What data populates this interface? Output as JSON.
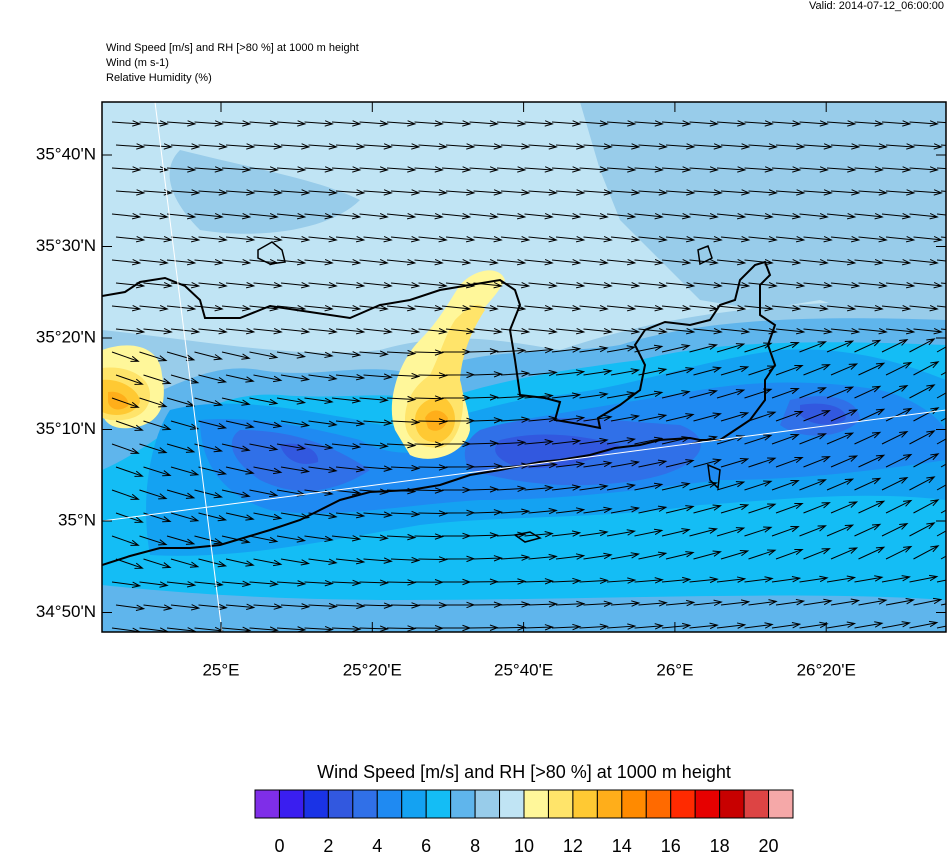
{
  "header": {
    "valid": "Valid: 2014-07-12_06:00:00",
    "lines": [
      "Wind Speed [m/s] and RH [>80 %] at 1000 m height",
      "Wind   (m s-1)",
      "Relative Humidity   (%)"
    ]
  },
  "map": {
    "lat_labels": [
      "35°40'N",
      "35°30'N",
      "35°20'N",
      "35°10'N",
      "35°N",
      "34°50'N"
    ],
    "lon_labels": [
      "25°E",
      "25°20'E",
      "25°40'E",
      "26°E",
      "26°20'E"
    ]
  },
  "colorbar": {
    "title": "Wind Speed [m/s] and RH [>80 %] at 1000 m height",
    "labels": [
      0,
      2,
      4,
      6,
      8,
      10,
      12,
      14,
      16,
      18,
      20
    ],
    "colors": [
      "#7f2ee8",
      "#3a1ef0",
      "#1a33e6",
      "#3258df",
      "#3070e8",
      "#1f8af2",
      "#14a2f2",
      "#14bdf5",
      "#5fb5ec",
      "#98ccea",
      "#c0e4f4",
      "#fff79a",
      "#ffe46a",
      "#ffc933",
      "#ffae1a",
      "#ff8a00",
      "#ff6a00",
      "#ff2a00",
      "#e60000",
      "#c80000",
      "#dd4444",
      "#f5a8a8"
    ]
  }
}
